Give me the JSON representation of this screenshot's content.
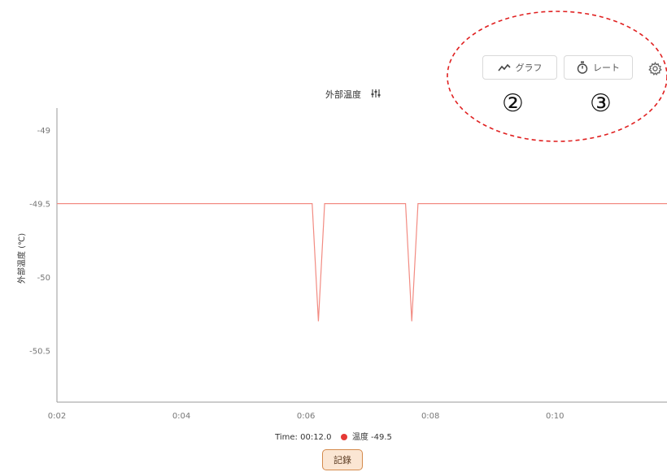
{
  "toolbar": {
    "graph_label": "グラフ",
    "rate_label": "レート",
    "graph_icon": "trend-line-icon",
    "rate_icon": "stopwatch-icon",
    "settings_icon": "gear-icon"
  },
  "annotations": {
    "marker_graph": "②",
    "marker_rate": "③",
    "highlight_color": "#e02020"
  },
  "status": {
    "time_text": "Time: 00:12.0",
    "series_text": "温度 -49.5",
    "series_color": "#e53935"
  },
  "record_label": "記錄",
  "chart_data": {
    "type": "line",
    "title": "外部温度",
    "title_icon": "sliders-icon",
    "ylabel": "外部温度 (℃)",
    "xlabel": "",
    "xlim": [
      "0:02",
      "0:11.8"
    ],
    "ylim": [
      -50.85,
      -48.85
    ],
    "x_ticks": [
      "0:02",
      "0:04",
      "0:06",
      "0:08",
      "0:10"
    ],
    "y_ticks": [
      -49,
      -49.5,
      -50,
      -50.5
    ],
    "grid": false,
    "color": "#f28b82",
    "series": [
      {
        "name": "温度",
        "points": [
          [
            "0:02",
            -49.5
          ],
          [
            "0:06.1",
            -49.5
          ],
          [
            "0:06.2",
            -50.3
          ],
          [
            "0:06.3",
            -49.5
          ],
          [
            "0:07.6",
            -49.5
          ],
          [
            "0:07.7",
            -50.3
          ],
          [
            "0:07.8",
            -49.5
          ],
          [
            "0:11.8",
            -49.5
          ]
        ]
      }
    ]
  }
}
